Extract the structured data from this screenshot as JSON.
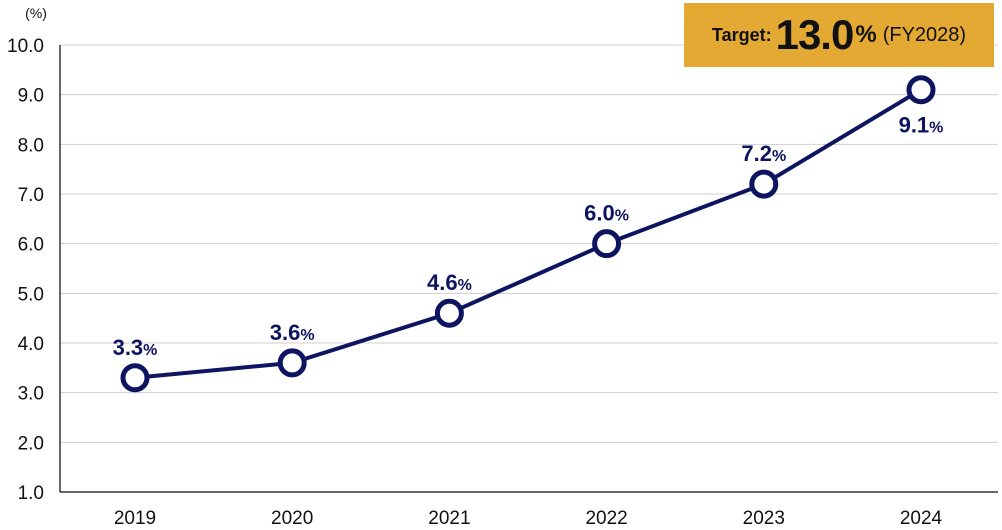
{
  "chart_data": {
    "type": "line",
    "unit_label": "(%)",
    "categories": [
      "2019",
      "2020",
      "2021",
      "2022",
      "2023",
      "2024"
    ],
    "values": [
      3.3,
      3.6,
      4.6,
      6.0,
      7.2,
      9.1
    ],
    "data_labels": [
      "3.3",
      "3.6",
      "4.6",
      "6.0",
      "7.2",
      "9.1"
    ],
    "data_label_suffix": "%",
    "ylim": [
      1.0,
      10.0
    ],
    "yticks": [
      "1.0",
      "2.0",
      "3.0",
      "4.0",
      "5.0",
      "6.0",
      "7.0",
      "8.0",
      "9.0",
      "10.0"
    ],
    "grid": true,
    "line_color": "#0d1460",
    "target": {
      "label": "Target:",
      "value": "13.0",
      "unit": "%",
      "note": "(FY2028)",
      "background": "#e3a932"
    }
  }
}
